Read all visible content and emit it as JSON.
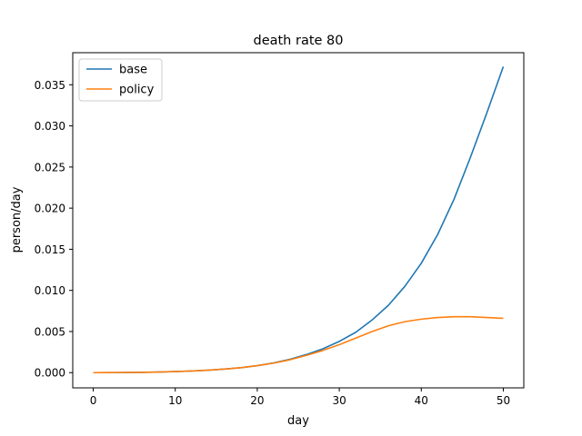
{
  "chart_data": {
    "type": "line",
    "title": "death rate 80",
    "xlabel": "day",
    "ylabel": "person/day",
    "xlim": [
      -2.5,
      52.5
    ],
    "ylim": [
      -0.00185,
      0.0389
    ],
    "xticks": [
      0,
      10,
      20,
      30,
      40,
      50
    ],
    "yticks": [
      0.0,
      0.005,
      0.01,
      0.015,
      0.02,
      0.025,
      0.03,
      0.035
    ],
    "ytick_labels": [
      "0.000",
      "0.005",
      "0.010",
      "0.015",
      "0.020",
      "0.025",
      "0.030",
      "0.035"
    ],
    "grid": false,
    "legend_position": "upper-left",
    "x": [
      0,
      2,
      4,
      6,
      8,
      10,
      12,
      14,
      16,
      18,
      20,
      22,
      24,
      26,
      28,
      30,
      32,
      34,
      36,
      38,
      40,
      42,
      44,
      46,
      48,
      50
    ],
    "series": [
      {
        "name": "base",
        "color": "#1f77b4",
        "values": [
          0.0,
          1e-05,
          2e-05,
          4e-05,
          8e-05,
          0.00013,
          0.0002,
          0.0003,
          0.00043,
          0.0006,
          0.00085,
          0.00118,
          0.00162,
          0.0022,
          0.0029,
          0.0038,
          0.0049,
          0.0064,
          0.0082,
          0.0105,
          0.0133,
          0.0168,
          0.0211,
          0.0262,
          0.0316,
          0.0372
        ]
      },
      {
        "name": "policy",
        "color": "#ff7f0e",
        "values": [
          0.0,
          1e-05,
          2e-05,
          4e-05,
          8e-05,
          0.00013,
          0.0002,
          0.0003,
          0.00043,
          0.0006,
          0.00085,
          0.00116,
          0.00157,
          0.0021,
          0.0027,
          0.0034,
          0.0042,
          0.005,
          0.0057,
          0.0062,
          0.0065,
          0.0067,
          0.0068,
          0.0068,
          0.0067,
          0.0066
        ]
      }
    ]
  }
}
